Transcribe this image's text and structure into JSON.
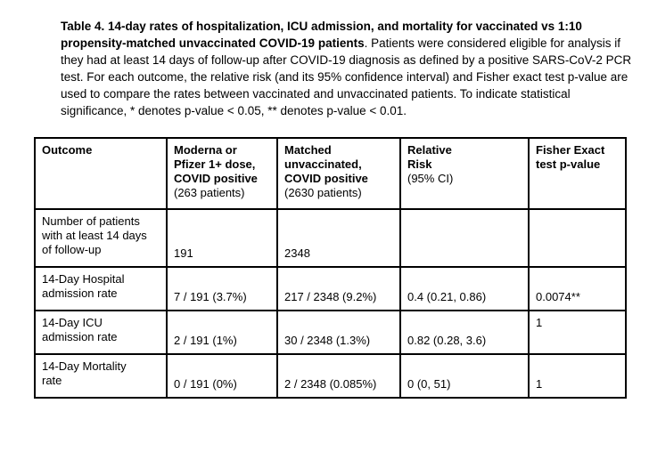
{
  "colors": {
    "background": "#ffffff",
    "text": "#000000",
    "table_border": "#000000"
  },
  "caption": {
    "bold": "Table 4. 14-day rates of hospitalization, ICU admission, and mortality for vaccinated vs 1:10 propensity-matched unvaccinated COVID-19 patients",
    "rest": ". Patients were considered eligible for analysis if they had at least 14 days of follow-up after COVID-19 diagnosis as defined by a positive SARS-CoV-2 PCR test. For each outcome, the relative risk (and its 95% confidence interval) and Fisher exact test p-value are used to compare the rates between vaccinated and unvaccinated patients. To indicate statistical significance, * denotes p-value < 0.05, ** denotes p-value < 0.01."
  },
  "table": {
    "header": [
      {
        "title": "Outcome",
        "subtitle": ""
      },
      {
        "title": "Moderna or\nPfizer 1+ dose,\nCOVID positive",
        "subtitle": "(263 patients)"
      },
      {
        "title": "Matched\nunvaccinated,\nCOVID positive",
        "subtitle": "(2630 patients)"
      },
      {
        "title": "Relative\nRisk",
        "subtitle": "(95% CI)"
      },
      {
        "title": "Fisher Exact\ntest p-value",
        "subtitle": ""
      }
    ],
    "rows": [
      {
        "outcome": "Number of patients\nwith at least 14 days\nof follow-up",
        "vaccinated": "191",
        "unvaccinated": "2348",
        "relative_risk": "",
        "fisher_p": ""
      },
      {
        "outcome": "14-Day Hospital\nadmission rate",
        "vaccinated": "7 / 191 (3.7%)",
        "unvaccinated": "217 / 2348 (9.2%)",
        "relative_risk": "0.4 (0.21, 0.86)",
        "fisher_p": "0.0074**"
      },
      {
        "outcome": "14-Day ICU\nadmission rate",
        "vaccinated": "2 / 191 (1%)",
        "unvaccinated": "30 / 2348 (1.3%)",
        "relative_risk": "0.82 (0.28, 3.6)",
        "fisher_p": "1"
      },
      {
        "outcome": "14-Day Mortality\nrate",
        "vaccinated": "0 / 191 (0%)",
        "unvaccinated": "2 / 2348 (0.085%)",
        "relative_risk": "0 (0, 51)",
        "fisher_p": "1"
      }
    ]
  }
}
